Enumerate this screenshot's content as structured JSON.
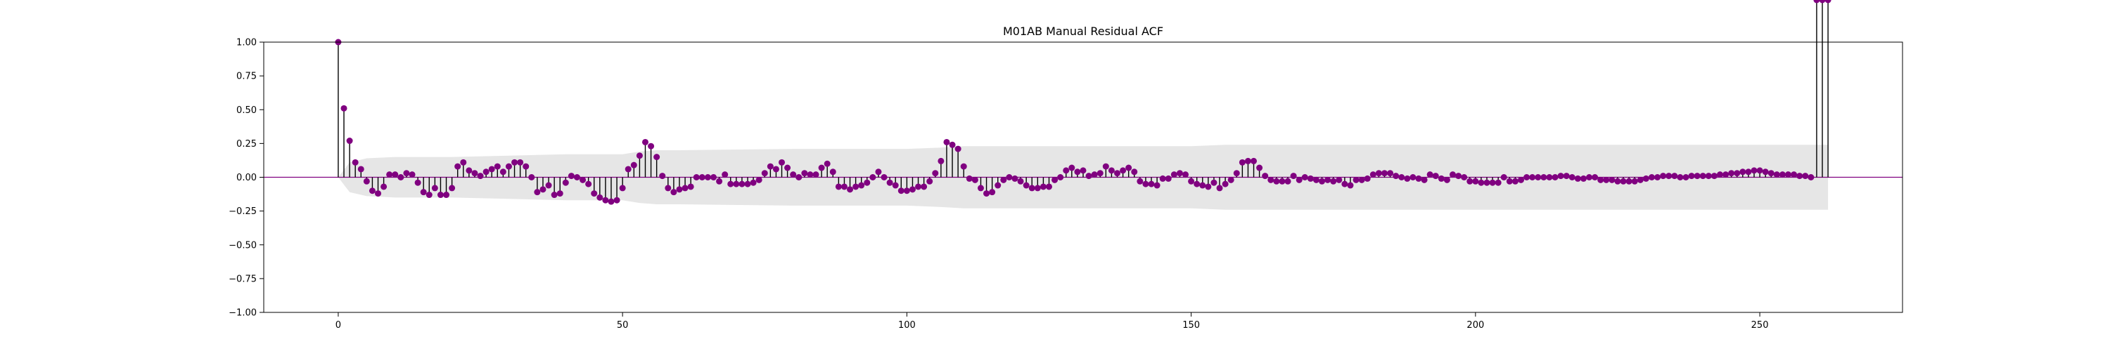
{
  "chart_data": {
    "type": "stem",
    "title": "M01AB Manual Residual ACF",
    "xlabel": "",
    "ylabel": "",
    "xlim": [
      -13.1,
      275.1
    ],
    "ylim": [
      -1.0,
      1.0
    ],
    "x_ticks": [
      0,
      50,
      100,
      150,
      200,
      250
    ],
    "x_tick_labels": [
      "0",
      "50",
      "100",
      "150",
      "200",
      "250"
    ],
    "y_ticks": [
      -1.0,
      -0.75,
      -0.5,
      -0.25,
      0.0,
      0.25,
      0.5,
      0.75,
      1.0
    ],
    "y_tick_labels": [
      "−1.00",
      "−0.75",
      "−0.50",
      "−0.25",
      "0.00",
      "0.25",
      "0.50",
      "0.75",
      "1.00"
    ],
    "grid": false,
    "colors": {
      "marker": "#800080",
      "stem": "#000000",
      "baseline": "#800080",
      "confidence_band": "#e6e6e6"
    },
    "lags": [
      0,
      1,
      2,
      3,
      4,
      5,
      6,
      7,
      8,
      9,
      10,
      11,
      12,
      13,
      14,
      15,
      16,
      17,
      18,
      19,
      20,
      21,
      22,
      23,
      24,
      25,
      26,
      27,
      28,
      29,
      30,
      31,
      32,
      33,
      34,
      35,
      36,
      37,
      38,
      39,
      40,
      41,
      42,
      43,
      44,
      45,
      46,
      47,
      48,
      49,
      50,
      51,
      52,
      53,
      54,
      55,
      56,
      57,
      58,
      59,
      60,
      61,
      62,
      63,
      64,
      65,
      66,
      67,
      68,
      69,
      70,
      71,
      72,
      73,
      74,
      75,
      76,
      77,
      78,
      79,
      80,
      81,
      82,
      83,
      84,
      85,
      86,
      87,
      88,
      89,
      90,
      91,
      92,
      93,
      94,
      95,
      96,
      97,
      98,
      99,
      100,
      101,
      102,
      103,
      104,
      105,
      106,
      107,
      108,
      109,
      110,
      111,
      112,
      113,
      114,
      115,
      116,
      117,
      118,
      119,
      120,
      121,
      122,
      123,
      124,
      125,
      126,
      127,
      128,
      129,
      130,
      131,
      132,
      133,
      134,
      135,
      136,
      137,
      138,
      139,
      140,
      141,
      142,
      143,
      144,
      145,
      146,
      147,
      148,
      149,
      150,
      151,
      152,
      153,
      154,
      155,
      156,
      157,
      158,
      159,
      160,
      161,
      162,
      163,
      164,
      165,
      166,
      167,
      168,
      169,
      170,
      171,
      172,
      173,
      174,
      175,
      176,
      177,
      178,
      179,
      180,
      181,
      182,
      183,
      184,
      185,
      186,
      187,
      188,
      189,
      190,
      191,
      192,
      193,
      194,
      195,
      196,
      197,
      198,
      199,
      200,
      201,
      202,
      203,
      204,
      205,
      206,
      207,
      208,
      209,
      210,
      211,
      212,
      213,
      214,
      215,
      216,
      217,
      218,
      219,
      220,
      221,
      222,
      223,
      224,
      225,
      226,
      227,
      228,
      229,
      230,
      231,
      232,
      233,
      234,
      235,
      236,
      237,
      238,
      239,
      240,
      241,
      242,
      243,
      244,
      245,
      246,
      247,
      248,
      249,
      250,
      251,
      252,
      253,
      254,
      255,
      256,
      257,
      258,
      259,
      260,
      261,
      262
    ],
    "acf": [
      1.0,
      0.51,
      0.27,
      0.11,
      0.06,
      -0.03,
      -0.1,
      -0.12,
      -0.07,
      0.02,
      0.02,
      0.0,
      0.03,
      0.02,
      -0.04,
      -0.11,
      -0.13,
      -0.08,
      -0.13,
      -0.13,
      -0.08,
      0.08,
      0.11,
      0.05,
      0.03,
      0.01,
      0.04,
      0.06,
      0.08,
      0.04,
      0.08,
      0.11,
      0.11,
      0.08,
      0.0,
      -0.11,
      -0.09,
      -0.06,
      -0.13,
      -0.12,
      -0.04,
      0.01,
      0.0,
      -0.02,
      -0.05,
      -0.12,
      -0.15,
      -0.17,
      -0.18,
      -0.17,
      -0.08,
      0.06,
      0.09,
      0.16,
      0.26,
      0.23,
      0.15,
      0.01,
      -0.08,
      -0.11,
      -0.09,
      -0.08,
      -0.07,
      0.0,
      0.0,
      0.0,
      0.0,
      -0.03,
      0.02,
      -0.05,
      -0.05,
      -0.05,
      -0.05,
      -0.04,
      -0.02,
      0.03,
      0.08,
      0.06,
      0.11,
      0.07,
      0.02,
      0.0,
      0.03,
      0.02,
      0.02,
      0.07,
      0.1,
      0.04,
      -0.07,
      -0.07,
      -0.09,
      -0.07,
      -0.06,
      -0.04,
      0.0,
      0.04,
      0.0,
      -0.04,
      -0.06,
      -0.1,
      -0.1,
      -0.09,
      -0.07,
      -0.07,
      -0.03,
      0.03,
      0.12,
      0.26,
      0.24,
      0.21,
      0.08,
      -0.01,
      -0.02,
      -0.08,
      -0.12,
      -0.11,
      -0.06,
      -0.02,
      0.0,
      -0.01,
      -0.03,
      -0.06,
      -0.08,
      -0.08,
      -0.07,
      -0.07,
      -0.02,
      0.0,
      0.05,
      0.07,
      0.04,
      0.05,
      0.01,
      0.02,
      0.03,
      0.08,
      0.05,
      0.03,
      0.05,
      0.07,
      0.04,
      -0.03,
      -0.05,
      -0.05,
      -0.06,
      -0.01,
      -0.01,
      0.02,
      0.03,
      0.02,
      -0.03,
      -0.05,
      -0.06,
      -0.07,
      -0.04,
      -0.08,
      -0.05,
      -0.02,
      0.03,
      0.11,
      0.12,
      0.12,
      0.07,
      0.01,
      -0.02,
      -0.03,
      -0.03,
      -0.03,
      0.01,
      -0.02,
      0.0,
      -0.01,
      -0.02,
      -0.03,
      -0.02,
      -0.03,
      -0.02,
      -0.05,
      -0.06,
      -0.02,
      -0.02,
      -0.01,
      0.02,
      0.03,
      0.03,
      0.03,
      0.01,
      0.0,
      -0.01,
      0.0,
      -0.01,
      -0.02,
      0.02,
      0.01,
      -0.01,
      -0.02,
      0.02,
      0.01,
      0.0,
      -0.03,
      -0.03,
      -0.04,
      -0.04,
      -0.04,
      -0.04,
      0.0,
      -0.03,
      -0.03,
      -0.02,
      0.0,
      0.0,
      0.0,
      0.0,
      0.0,
      0.0,
      0.01,
      0.01,
      0.0,
      -0.01,
      -0.01,
      0.0,
      0.0,
      -0.02,
      -0.02,
      -0.02,
      -0.03,
      -0.03,
      -0.03,
      -0.03,
      -0.02,
      -0.01,
      0.0,
      0.0,
      0.01,
      0.01,
      0.01,
      0.0,
      0.0,
      0.01,
      0.01,
      0.01,
      0.01,
      0.01,
      0.02,
      0.02,
      0.03,
      0.03,
      0.04,
      0.04,
      0.05,
      0.05,
      0.04,
      0.03,
      0.02,
      0.02,
      0.02,
      0.02,
      0.01,
      0.01,
      0.0
    ],
    "confidence_band": {
      "lags": [
        0,
        2,
        5,
        10,
        20,
        30,
        40,
        50,
        53,
        56,
        60,
        80,
        100,
        106,
        110,
        130,
        150,
        156,
        160,
        200,
        250,
        262
      ],
      "upper": [
        0.0,
        0.11,
        0.14,
        0.15,
        0.15,
        0.16,
        0.17,
        0.17,
        0.19,
        0.2,
        0.2,
        0.21,
        0.21,
        0.22,
        0.23,
        0.23,
        0.23,
        0.24,
        0.24,
        0.24,
        0.24,
        0.24
      ]
    }
  }
}
